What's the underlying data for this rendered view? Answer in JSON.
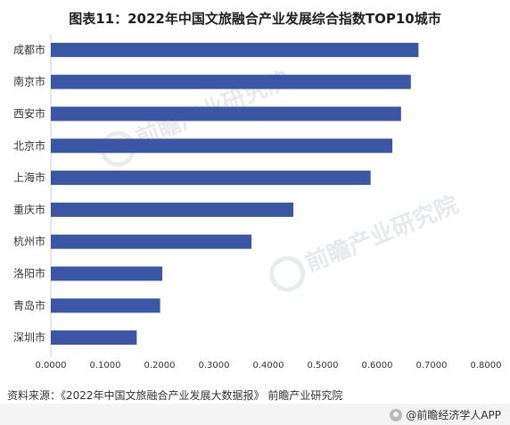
{
  "title": "图表11：2022年中国文旅融合产业发展综合指数TOP10城市",
  "source": "资料来源：《2022年中国文旅融合产业发展大数据报》 前瞻产业研究院",
  "brand": "@前瞻经济学人APP",
  "watermark": "前瞻产业研究院",
  "colors": {
    "bar": "#3A56A5",
    "axis": "#d0d0d0",
    "text": "#333333"
  },
  "chart_data": {
    "type": "bar",
    "orientation": "horizontal",
    "categories": [
      "成都市",
      "南京市",
      "西安市",
      "北京市",
      "上海市",
      "重庆市",
      "杭州市",
      "洛阳市",
      "青岛市",
      "深圳市"
    ],
    "values": [
      0.676,
      0.662,
      0.644,
      0.628,
      0.588,
      0.446,
      0.369,
      0.205,
      0.201,
      0.158
    ],
    "xlim": [
      0,
      0.8
    ],
    "xticks": [
      "0.0000",
      "0.1000",
      "0.2000",
      "0.3000",
      "0.4000",
      "0.5000",
      "0.6000",
      "0.7000",
      "0.8000"
    ],
    "grid": false,
    "legend": "none"
  }
}
